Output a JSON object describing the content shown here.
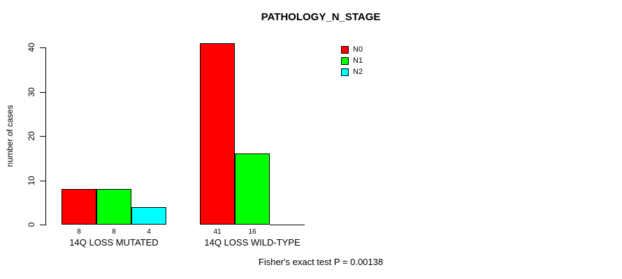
{
  "title": "PATHOLOGY_N_STAGE",
  "footer": "Fisher's exact test P = 0.00138",
  "chart_data": {
    "type": "bar",
    "title": "PATHOLOGY_N_STAGE",
    "xlabel": "",
    "ylabel": "number of cases",
    "categories": [
      "14Q LOSS MUTATED",
      "14Q LOSS WILD-TYPE"
    ],
    "series": [
      {
        "name": "N0",
        "color": "#ff0000",
        "values": [
          8,
          41
        ]
      },
      {
        "name": "N1",
        "color": "#00ff00",
        "values": [
          8,
          16
        ]
      },
      {
        "name": "N2",
        "color": "#00ffff",
        "values": [
          4,
          0
        ]
      }
    ],
    "bar_labels": [
      [
        "8",
        "8",
        "4"
      ],
      [
        "41",
        "16",
        ""
      ]
    ],
    "ylim": [
      0,
      41
    ],
    "yticks": [
      0,
      10,
      20,
      30,
      40
    ],
    "grid": false,
    "legend_position": "top-right",
    "annotation": "Fisher's exact test P = 0.00138"
  }
}
